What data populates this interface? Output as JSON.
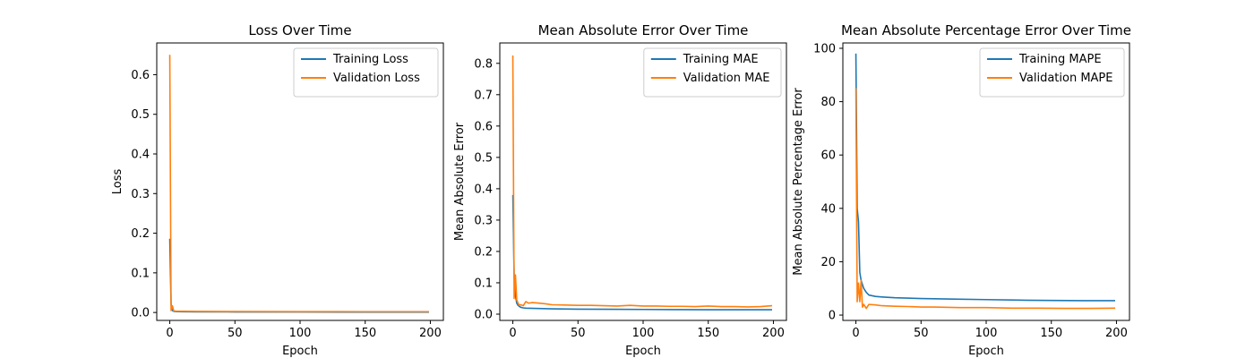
{
  "chart_data": [
    {
      "type": "line",
      "title": "Loss Over Time",
      "xlabel": "Epoch",
      "ylabel": "Loss",
      "xlim": [
        -10,
        210
      ],
      "ylim": [
        -0.02,
        0.68
      ],
      "xticks": [
        0,
        50,
        100,
        150,
        200
      ],
      "yticks": [
        0.0,
        0.1,
        0.2,
        0.3,
        0.4,
        0.5,
        0.6
      ],
      "ytick_labels": [
        "0.0",
        "0.1",
        "0.2",
        "0.3",
        "0.4",
        "0.5",
        "0.6"
      ],
      "legend": "top-right",
      "series": [
        {
          "name": "Training Loss",
          "color": "#1f77b4",
          "x": [
            0,
            1,
            2,
            3,
            5,
            10,
            20,
            50,
            100,
            150,
            199
          ],
          "y": [
            0.186,
            0.02,
            0.005,
            0.003,
            0.002,
            0.0018,
            0.0016,
            0.0014,
            0.0012,
            0.0011,
            0.001
          ]
        },
        {
          "name": "Validation Loss",
          "color": "#ff7f0e",
          "x": [
            0,
            1,
            2,
            3,
            5,
            10,
            20,
            50,
            100,
            150,
            199
          ],
          "y": [
            0.65,
            0.005,
            0.017,
            0.004,
            0.003,
            0.003,
            0.0028,
            0.0025,
            0.0022,
            0.002,
            0.002
          ]
        }
      ]
    },
    {
      "type": "line",
      "title": "Mean Absolute Error Over Time",
      "xlabel": "Epoch",
      "ylabel": "Mean Absolute Error",
      "xlim": [
        -10,
        210
      ],
      "ylim": [
        -0.02,
        0.865
      ],
      "xticks": [
        0,
        50,
        100,
        150,
        200
      ],
      "yticks": [
        0.0,
        0.1,
        0.2,
        0.3,
        0.4,
        0.5,
        0.6,
        0.7,
        0.8
      ],
      "ytick_labels": [
        "0.0",
        "0.1",
        "0.2",
        "0.3",
        "0.4",
        "0.5",
        "0.6",
        "0.7",
        "0.8"
      ],
      "legend": "top-right",
      "series": [
        {
          "name": "Training MAE",
          "color": "#1f77b4",
          "x": [
            0,
            1,
            2,
            3,
            4,
            6,
            8,
            10,
            20,
            30,
            50,
            75,
            100,
            125,
            150,
            175,
            199
          ],
          "y": [
            0.38,
            0.12,
            0.06,
            0.035,
            0.028,
            0.022,
            0.02,
            0.019,
            0.018,
            0.017,
            0.016,
            0.0155,
            0.015,
            0.0145,
            0.014,
            0.014,
            0.014
          ]
        },
        {
          "name": "Validation MAE",
          "color": "#ff7f0e",
          "x": [
            0,
            1,
            2,
            3,
            4,
            5,
            6,
            8,
            10,
            12,
            15,
            20,
            25,
            30,
            40,
            50,
            60,
            70,
            80,
            90,
            100,
            110,
            120,
            130,
            140,
            150,
            160,
            170,
            180,
            190,
            199
          ],
          "y": [
            0.825,
            0.05,
            0.125,
            0.045,
            0.035,
            0.028,
            0.03,
            0.027,
            0.04,
            0.035,
            0.037,
            0.035,
            0.033,
            0.03,
            0.029,
            0.028,
            0.028,
            0.027,
            0.026,
            0.028,
            0.026,
            0.026,
            0.025,
            0.025,
            0.024,
            0.026,
            0.024,
            0.024,
            0.023,
            0.024,
            0.027
          ]
        }
      ]
    },
    {
      "type": "line",
      "title": "Mean Absolute Percentage Error Over Time",
      "xlabel": "Epoch",
      "ylabel": "Mean Absolute Percentage Error",
      "xlim": [
        -10,
        210
      ],
      "ylim": [
        -2,
        102
      ],
      "xticks": [
        0,
        50,
        100,
        150,
        200
      ],
      "yticks": [
        0,
        20,
        40,
        60,
        80,
        100
      ],
      "ytick_labels": [
        "0",
        "20",
        "40",
        "60",
        "80",
        "100"
      ],
      "legend": "top-right",
      "series": [
        {
          "name": "Training MAPE",
          "color": "#1f77b4",
          "x": [
            0,
            1,
            2,
            3,
            4,
            6,
            8,
            10,
            15,
            20,
            30,
            50,
            75,
            100,
            125,
            150,
            175,
            199
          ],
          "y": [
            98,
            40,
            35,
            16,
            13,
            10,
            8.5,
            7.5,
            7,
            6.8,
            6.5,
            6.2,
            6,
            5.8,
            5.6,
            5.5,
            5.4,
            5.4
          ]
        },
        {
          "name": "Validation MAPE",
          "color": "#ff7f0e",
          "x": [
            0,
            1,
            2,
            3,
            4,
            5,
            6,
            8,
            10,
            15,
            20,
            30,
            40,
            50,
            60,
            80,
            100,
            120,
            140,
            160,
            180,
            199
          ],
          "y": [
            85,
            5,
            12,
            5,
            13,
            3,
            4,
            2.5,
            4,
            3.8,
            3.5,
            3.3,
            3.2,
            3,
            3,
            2.8,
            2.8,
            2.6,
            2.6,
            2.5,
            2.5,
            2.6
          ]
        }
      ]
    }
  ]
}
